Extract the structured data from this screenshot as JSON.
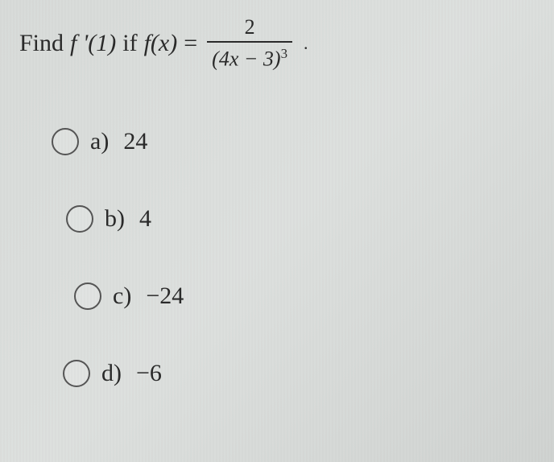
{
  "question": {
    "find_text": "Find",
    "f_prime_label": "f '(1)",
    "if_text": "if",
    "fx_label": "f(x)",
    "equals": "=",
    "fraction": {
      "numerator": "2",
      "denominator_base": "(4x − 3)",
      "denominator_exponent": "3"
    },
    "trailing_period": "."
  },
  "options": [
    {
      "letter": "a)",
      "value": "24"
    },
    {
      "letter": "b)",
      "value": "4"
    },
    {
      "letter": "c)",
      "value": "−24"
    },
    {
      "letter": "d)",
      "value": "−6"
    }
  ],
  "style": {
    "background_color": "#d8dbd9",
    "text_color": "#2a2a2a",
    "radio_border_color": "#555555",
    "question_fontsize": 30,
    "option_fontsize": 30,
    "radio_diameter": 34
  }
}
